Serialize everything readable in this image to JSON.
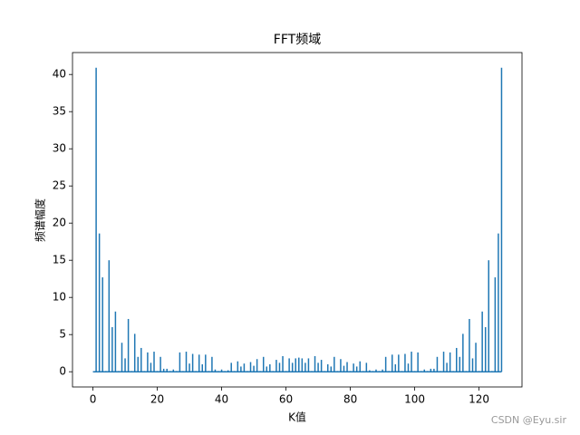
{
  "chart_data": {
    "type": "stem",
    "title": "FFT频域",
    "xlabel": "K值",
    "ylabel": "频谱幅度",
    "watermark": "CSDN @Eyu.sir",
    "color": "#1f77b4",
    "baseline": true,
    "x": [
      0,
      1,
      2,
      3,
      4,
      5,
      6,
      7,
      8,
      9,
      10,
      11,
      12,
      13,
      14,
      15,
      16,
      17,
      18,
      19,
      20,
      21,
      22,
      23,
      24,
      25,
      26,
      27,
      28,
      29,
      30,
      31,
      32,
      33,
      34,
      35,
      36,
      37,
      38,
      39,
      40,
      41,
      42,
      43,
      44,
      45,
      46,
      47,
      48,
      49,
      50,
      51,
      52,
      53,
      54,
      55,
      56,
      57,
      58,
      59,
      60,
      61,
      62,
      63,
      64,
      65,
      66,
      67,
      68,
      69,
      70,
      71,
      72,
      73,
      74,
      75,
      76,
      77,
      78,
      79,
      80,
      81,
      82,
      83,
      84,
      85,
      86,
      87,
      88,
      89,
      90,
      91,
      92,
      93,
      94,
      95,
      96,
      97,
      98,
      99,
      100,
      101,
      102,
      103,
      104,
      105,
      106,
      107,
      108,
      109,
      110,
      111,
      112,
      113,
      114,
      115,
      116,
      117,
      118,
      119,
      120,
      121,
      122,
      123,
      124,
      125,
      126,
      127
    ],
    "values": [
      0,
      40.9,
      18.6,
      12.7,
      0.1,
      15.0,
      6.0,
      8.1,
      0.1,
      3.9,
      1.8,
      7.1,
      0.1,
      5.1,
      2.0,
      3.2,
      0.1,
      2.6,
      1.2,
      2.7,
      0.1,
      2.0,
      0.4,
      0.4,
      0.1,
      0.3,
      0.1,
      2.6,
      0.1,
      2.7,
      1.1,
      2.4,
      0.1,
      2.3,
      1.0,
      2.3,
      0.1,
      2.0,
      0.3,
      0.1,
      0.3,
      0.1,
      0.2,
      1.2,
      0.1,
      1.4,
      0.7,
      1.1,
      0.1,
      1.3,
      0.8,
      1.7,
      0.1,
      2.0,
      0.7,
      1.0,
      0.1,
      1.6,
      1.2,
      2.1,
      0.1,
      1.8,
      1.2,
      1.8,
      1.9,
      1.8,
      1.2,
      1.8,
      0.1,
      2.1,
      1.2,
      1.6,
      0.1,
      1.0,
      0.7,
      2.0,
      0.1,
      1.7,
      0.8,
      1.3,
      0.1,
      1.1,
      0.7,
      1.4,
      0.1,
      1.2,
      0.2,
      0.1,
      0.3,
      0.1,
      0.3,
      2.0,
      0.1,
      2.3,
      1.0,
      2.3,
      0.1,
      2.4,
      1.1,
      2.7,
      0.1,
      2.6,
      0.1,
      0.3,
      0.1,
      0.4,
      0.4,
      2.0,
      0.1,
      2.7,
      1.2,
      2.6,
      0.1,
      3.2,
      2.0,
      5.1,
      0.1,
      7.1,
      1.8,
      3.9,
      0.1,
      8.1,
      6.0,
      15.0,
      0.1,
      12.7,
      18.6,
      40.9
    ],
    "xlim": [
      -6.35,
      133.35
    ],
    "xticks": [
      0,
      20,
      40,
      60,
      80,
      100,
      120
    ],
    "ylim": [
      -2.05,
      42.95
    ],
    "yticks": [
      0,
      5,
      10,
      15,
      20,
      25,
      30,
      35,
      40
    ]
  }
}
